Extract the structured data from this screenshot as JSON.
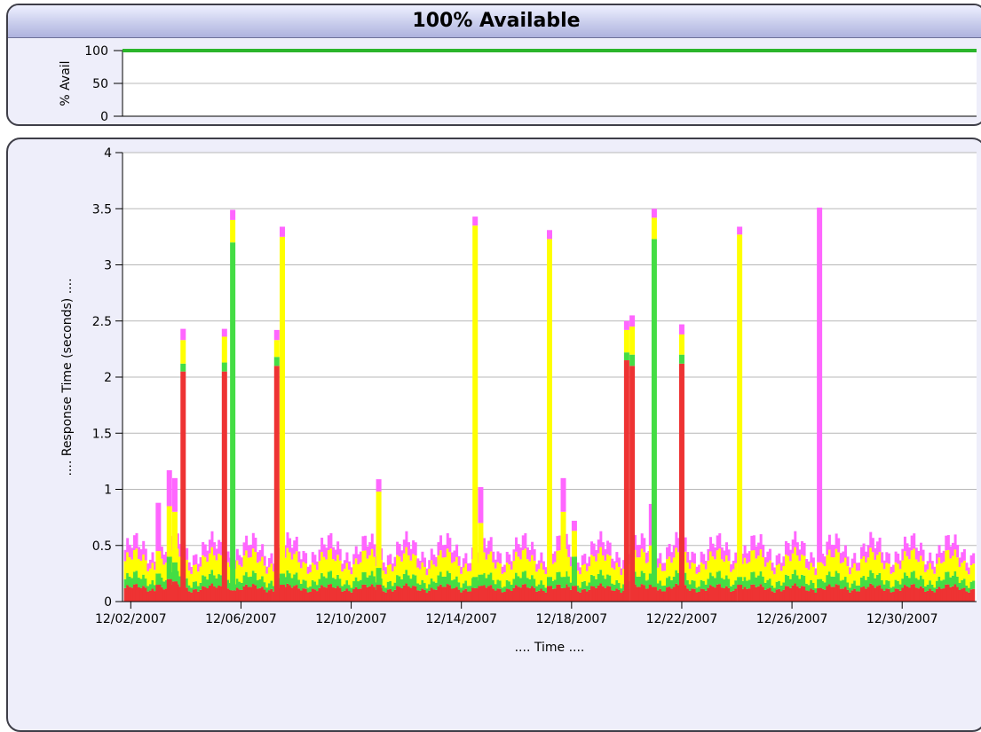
{
  "availability_panel": {
    "title": "100% Available",
    "chart_data": {
      "type": "line",
      "ylabel": "% Avail",
      "ylim": [
        0,
        100
      ],
      "yticks": [
        "100",
        "50",
        "0"
      ],
      "series": [
        {
          "values": [
            100,
            100
          ],
          "color": "#2bb52b"
        }
      ]
    }
  },
  "response_panel": {
    "chart_data": {
      "type": "bar",
      "stacked": true,
      "xlabel": ".... Time ....",
      "ylabel": ".... Response Time (seconds) ....",
      "ylim": [
        0,
        4
      ],
      "yticks": [
        "0",
        "0.5",
        "1",
        "1.5",
        "2",
        "2.5",
        "3",
        "3.5",
        "4"
      ],
      "xticks": [
        "12/02/2007",
        "12/06/2007",
        "12/10/2007",
        "12/14/2007",
        "12/18/2007",
        "12/22/2007",
        "12/26/2007",
        "12/30/2007"
      ],
      "xrange_days": [
        1.7,
        32.7
      ],
      "grid": true,
      "layer_colors": [
        "#ee3333",
        "#44dd44",
        "#ffff00",
        "#ff66ff"
      ],
      "baseline": [
        0.12,
        0.2,
        0.36,
        0.46
      ],
      "spikes": [
        {
          "day": 3.0,
          "values": [
            0.15,
            0.25,
            0.45,
            0.88
          ]
        },
        {
          "day": 3.4,
          "values": [
            0.2,
            0.4,
            0.85,
            1.17
          ]
        },
        {
          "day": 3.6,
          "values": [
            0.18,
            0.35,
            0.8,
            1.1
          ]
        },
        {
          "day": 3.9,
          "values": [
            2.05,
            2.12,
            2.33,
            2.43
          ]
        },
        {
          "day": 5.4,
          "values": [
            2.05,
            2.13,
            2.36,
            2.43
          ]
        },
        {
          "day": 5.7,
          "values": [
            0.1,
            3.2,
            3.4,
            3.49
          ]
        },
        {
          "day": 7.3,
          "values": [
            2.1,
            2.18,
            2.33,
            2.42
          ]
        },
        {
          "day": 7.5,
          "values": [
            0.15,
            0.25,
            3.25,
            3.34
          ]
        },
        {
          "day": 11.0,
          "values": [
            0.15,
            0.3,
            0.98,
            1.09
          ]
        },
        {
          "day": 14.5,
          "values": [
            0.12,
            0.22,
            3.35,
            3.43
          ]
        },
        {
          "day": 14.7,
          "values": [
            0.14,
            0.24,
            0.7,
            1.02
          ]
        },
        {
          "day": 17.2,
          "values": [
            0.14,
            0.22,
            3.23,
            3.31
          ]
        },
        {
          "day": 17.7,
          "values": [
            0.12,
            0.22,
            0.8,
            1.1
          ]
        },
        {
          "day": 18.1,
          "values": [
            0.14,
            0.4,
            0.63,
            0.72
          ]
        },
        {
          "day": 20.0,
          "values": [
            2.15,
            2.22,
            2.42,
            2.5
          ]
        },
        {
          "day": 20.2,
          "values": [
            2.1,
            2.2,
            2.45,
            2.55
          ]
        },
        {
          "day": 20.9,
          "values": [
            0.15,
            0.25,
            0.5,
            0.87
          ]
        },
        {
          "day": 21.0,
          "values": [
            0.13,
            3.23,
            3.42,
            3.5
          ]
        },
        {
          "day": 22.0,
          "values": [
            2.12,
            2.2,
            2.38,
            2.47
          ]
        },
        {
          "day": 24.1,
          "values": [
            0.15,
            0.22,
            3.27,
            3.34
          ]
        },
        {
          "day": 27.0,
          "values": [
            0.12,
            0.2,
            0.35,
            3.51
          ]
        }
      ]
    }
  }
}
